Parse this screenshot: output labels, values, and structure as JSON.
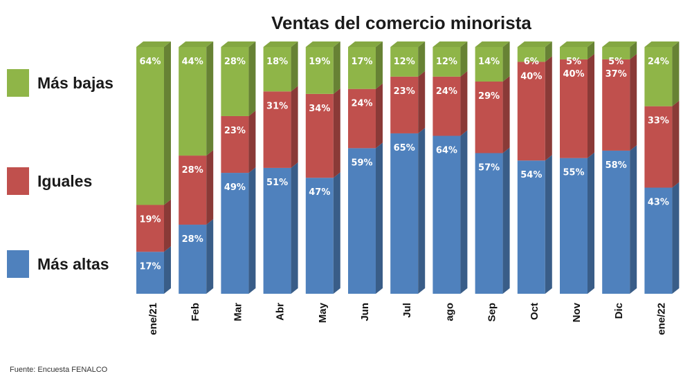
{
  "colors": {
    "mas_bajas": "#8fb548",
    "iguales": "#c0504d",
    "mas_altas": "#4f81bd"
  },
  "legend": [
    {
      "key": "mas_bajas",
      "label": "Más bajas"
    },
    {
      "key": "iguales",
      "label": "Iguales"
    },
    {
      "key": "mas_altas",
      "label": "Más altas"
    }
  ],
  "footnote": "Fuente: Encuesta FENALCO",
  "chart_data": {
    "type": "bar",
    "stacked": true,
    "title": "Ventas del comercio minorista",
    "xlabel": "",
    "ylabel": "",
    "ylim": [
      0,
      100
    ],
    "grid": false,
    "legend_position": "left",
    "categories": [
      "ene/21",
      "Feb",
      "Mar",
      "Abr",
      "May",
      "Jun",
      "Jul",
      "ago",
      "Sep",
      "Oct",
      "Nov",
      "Dic",
      "ene/22"
    ],
    "series": [
      {
        "name": "Más altas",
        "key": "mas_altas",
        "values": [
          17,
          28,
          49,
          51,
          47,
          59,
          65,
          64,
          57,
          54,
          55,
          58,
          43
        ]
      },
      {
        "name": "Iguales",
        "key": "iguales",
        "values": [
          19,
          28,
          23,
          31,
          34,
          24,
          23,
          24,
          29,
          40,
          40,
          37,
          33
        ]
      },
      {
        "name": "Más bajas",
        "key": "mas_bajas",
        "values": [
          64,
          44,
          28,
          18,
          19,
          17,
          12,
          12,
          14,
          6,
          5,
          5,
          24
        ]
      }
    ]
  }
}
